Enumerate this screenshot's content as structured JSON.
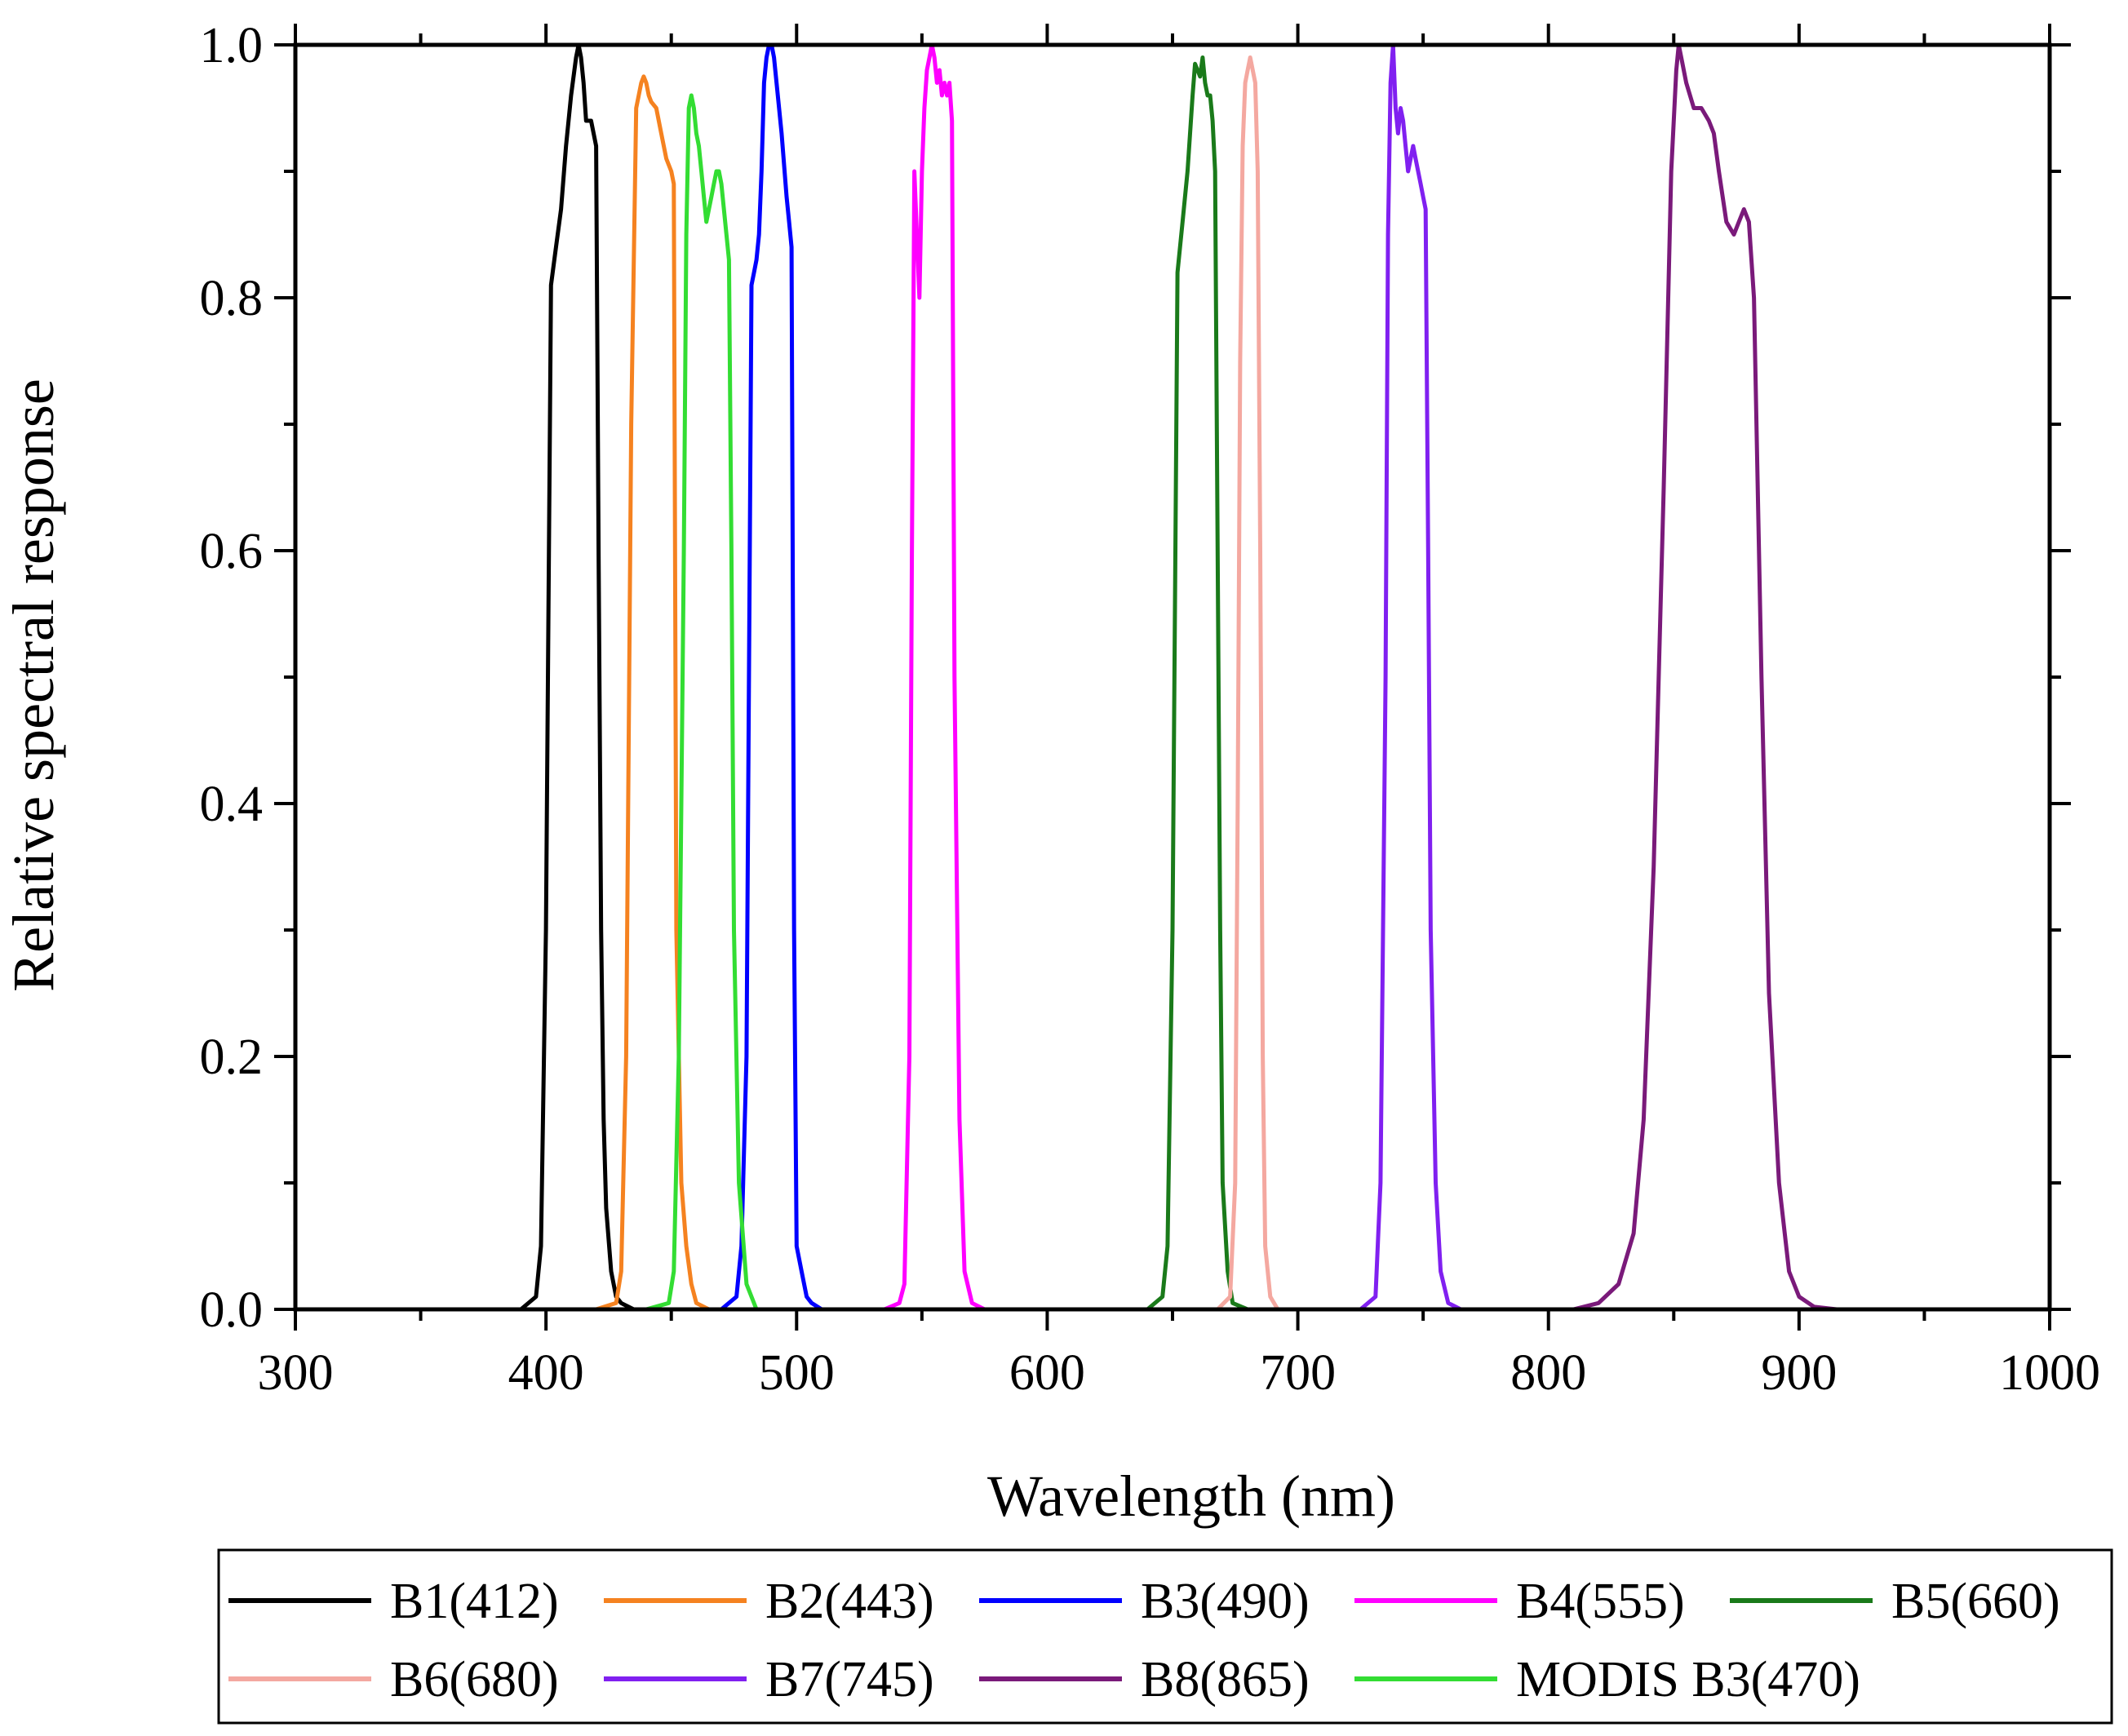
{
  "chart_data": {
    "type": "line",
    "xlabel": "Wavelength (nm)",
    "ylabel": "Relative spectral response",
    "xlim": [
      300,
      1000
    ],
    "ylim": [
      0.0,
      1.0
    ],
    "x_ticks": [
      300,
      400,
      500,
      600,
      700,
      800,
      900,
      1000
    ],
    "x_tick_labels": [
      "300",
      "400",
      "500",
      "600",
      "700",
      "800",
      "900",
      "1000"
    ],
    "y_ticks": [
      0.0,
      0.2,
      0.4,
      0.6,
      0.8,
      1.0
    ],
    "y_tick_labels": [
      "0.0",
      "0.2",
      "0.4",
      "0.6",
      "0.8",
      "1.0"
    ],
    "grid": false,
    "legend_position": "bottom",
    "series": [
      {
        "name": "B1(412)",
        "color": "#000000",
        "x": [
          390,
          396,
          398,
          400,
          402,
          404,
          406,
          408,
          410,
          412,
          413,
          414,
          415,
          416,
          417,
          418,
          419,
          420,
          421,
          422,
          423,
          424,
          426,
          428,
          430,
          435
        ],
        "y": [
          0,
          0.01,
          0.05,
          0.3,
          0.81,
          0.84,
          0.87,
          0.92,
          0.96,
          0.99,
          1.0,
          0.99,
          0.97,
          0.94,
          0.94,
          0.94,
          0.93,
          0.92,
          0.6,
          0.3,
          0.15,
          0.08,
          0.03,
          0.01,
          0.005,
          0
        ]
      },
      {
        "name": "B2(443)",
        "color": "#F58220",
        "x": [
          420,
          428,
          430,
          432,
          434,
          436,
          437,
          438,
          439,
          440,
          441,
          442,
          444,
          446,
          448,
          450,
          451,
          452,
          454,
          456,
          458,
          460,
          465
        ],
        "y": [
          0,
          0.005,
          0.03,
          0.2,
          0.7,
          0.95,
          0.96,
          0.97,
          0.975,
          0.97,
          0.96,
          0.955,
          0.95,
          0.93,
          0.91,
          0.9,
          0.89,
          0.3,
          0.1,
          0.05,
          0.02,
          0.005,
          0
        ]
      },
      {
        "name": "B3(490)",
        "color": "#0000FF",
        "x": [
          470,
          476,
          478,
          480,
          482,
          483,
          484,
          485,
          486,
          487,
          488,
          489,
          490,
          491,
          492,
          494,
          496,
          497,
          498,
          499,
          500,
          502,
          504,
          506,
          510
        ],
        "y": [
          0,
          0.01,
          0.05,
          0.2,
          0.81,
          0.82,
          0.83,
          0.85,
          0.9,
          0.97,
          0.99,
          1.0,
          1.0,
          0.99,
          0.97,
          0.93,
          0.88,
          0.86,
          0.84,
          0.3,
          0.05,
          0.03,
          0.01,
          0.005,
          0
        ]
      },
      {
        "name": "B4(555)",
        "color": "#FF00FF",
        "x": [
          535,
          541,
          543,
          545,
          546,
          547,
          548,
          549,
          550,
          551,
          552,
          553,
          554,
          555,
          556,
          557,
          558,
          559,
          560,
          561,
          562,
          563,
          565,
          567,
          570,
          575
        ],
        "y": [
          0,
          0.005,
          0.02,
          0.2,
          0.6,
          0.9,
          0.85,
          0.8,
          0.9,
          0.95,
          0.98,
          0.99,
          1.0,
          0.99,
          0.97,
          0.98,
          0.96,
          0.97,
          0.96,
          0.97,
          0.94,
          0.5,
          0.15,
          0.03,
          0.005,
          0
        ]
      },
      {
        "name": "B5(660)",
        "color": "#1A7A1A",
        "x": [
          640,
          646,
          648,
          650,
          652,
          653,
          654,
          656,
          657,
          658,
          659,
          660,
          661,
          662,
          663,
          664,
          665,
          666,
          667,
          668,
          669,
          670,
          672,
          674,
          680
        ],
        "y": [
          0,
          0.01,
          0.05,
          0.3,
          0.82,
          0.84,
          0.86,
          0.9,
          0.93,
          0.96,
          0.985,
          0.98,
          0.975,
          0.99,
          0.97,
          0.96,
          0.96,
          0.94,
          0.9,
          0.6,
          0.3,
          0.1,
          0.03,
          0.005,
          0
        ]
      },
      {
        "name": "B6(680)",
        "color": "#F4A8A0",
        "x": [
          668,
          673,
          675,
          676,
          677,
          678,
          679,
          680,
          681,
          682,
          683,
          684,
          685,
          686,
          687,
          689,
          692
        ],
        "y": [
          0,
          0.01,
          0.1,
          0.4,
          0.75,
          0.92,
          0.97,
          0.98,
          0.99,
          0.98,
          0.97,
          0.9,
          0.6,
          0.2,
          0.05,
          0.01,
          0
        ]
      },
      {
        "name": "B7(745)",
        "color": "#8020F0",
        "x": [
          725,
          731,
          733,
          735,
          736,
          737,
          738,
          739,
          740,
          741,
          742,
          743,
          744,
          745,
          746,
          747,
          748,
          749,
          750,
          751,
          752,
          753,
          755,
          757,
          760,
          765
        ],
        "y": [
          0,
          0.01,
          0.1,
          0.5,
          0.85,
          0.97,
          1.0,
          0.95,
          0.93,
          0.95,
          0.94,
          0.92,
          0.9,
          0.91,
          0.92,
          0.91,
          0.9,
          0.89,
          0.88,
          0.87,
          0.6,
          0.3,
          0.1,
          0.03,
          0.005,
          0
        ]
      },
      {
        "name": "B8(865)",
        "color": "#7A1A7A",
        "x": [
          810,
          820,
          828,
          834,
          838,
          842,
          846,
          849,
          851,
          852,
          853,
          855,
          858,
          861,
          864,
          866,
          868,
          871,
          874,
          876,
          878,
          880,
          882,
          885,
          888,
          892,
          896,
          900,
          906,
          915
        ],
        "y": [
          0,
          0.005,
          0.02,
          0.06,
          0.15,
          0.35,
          0.65,
          0.9,
          0.98,
          1.0,
          0.99,
          0.97,
          0.95,
          0.95,
          0.94,
          0.93,
          0.9,
          0.86,
          0.85,
          0.86,
          0.87,
          0.86,
          0.8,
          0.5,
          0.25,
          0.1,
          0.03,
          0.01,
          0.002,
          0
        ]
      },
      {
        "name": "MODIS B3(470)",
        "color": "#33DD33",
        "x": [
          440,
          449,
          451,
          453,
          455,
          456,
          457,
          458,
          459,
          460,
          461,
          462,
          463,
          464,
          465,
          466,
          467,
          468,
          469,
          470,
          471,
          472,
          473,
          474,
          475,
          477,
          480,
          484
        ],
        "y": [
          0,
          0.005,
          0.03,
          0.2,
          0.6,
          0.85,
          0.95,
          0.96,
          0.95,
          0.93,
          0.92,
          0.9,
          0.88,
          0.86,
          0.87,
          0.88,
          0.89,
          0.9,
          0.9,
          0.89,
          0.87,
          0.85,
          0.83,
          0.6,
          0.3,
          0.1,
          0.02,
          0
        ]
      }
    ]
  }
}
